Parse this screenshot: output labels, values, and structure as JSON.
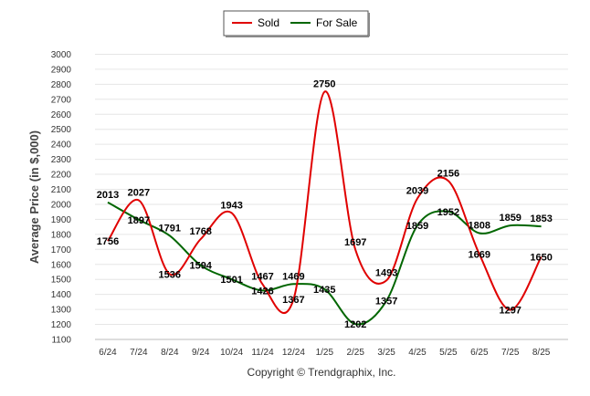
{
  "chart_data": {
    "type": "line",
    "categories": [
      "6/24",
      "7/24",
      "8/24",
      "9/24",
      "10/24",
      "11/24",
      "12/24",
      "1/25",
      "2/25",
      "3/25",
      "4/25",
      "5/25",
      "6/25",
      "7/25",
      "8/25"
    ],
    "series": [
      {
        "name": "Sold",
        "color": "#e00000",
        "values": [
          1756,
          2027,
          1536,
          1768,
          1943,
          1467,
          1367,
          2750,
          1697,
          1493,
          2039,
          2156,
          1669,
          1297,
          1650
        ]
      },
      {
        "name": "For Sale",
        "color": "#006600",
        "values": [
          2013,
          1897,
          1791,
          1594,
          1501,
          1426,
          1469,
          1435,
          1202,
          1357,
          1859,
          1952,
          1808,
          1859,
          1853
        ]
      }
    ],
    "ylabel": "Average Price (in $,000)",
    "ylim": [
      1100,
      3000
    ],
    "yticks": [
      1100,
      1200,
      1300,
      1400,
      1500,
      1600,
      1700,
      1800,
      1900,
      2000,
      2100,
      2200,
      2300,
      2400,
      2500,
      2600,
      2700,
      2800,
      2900,
      3000
    ],
    "grid": true,
    "legend_position": "top-center",
    "footer": "Copyright © Trendgraphix, Inc."
  }
}
